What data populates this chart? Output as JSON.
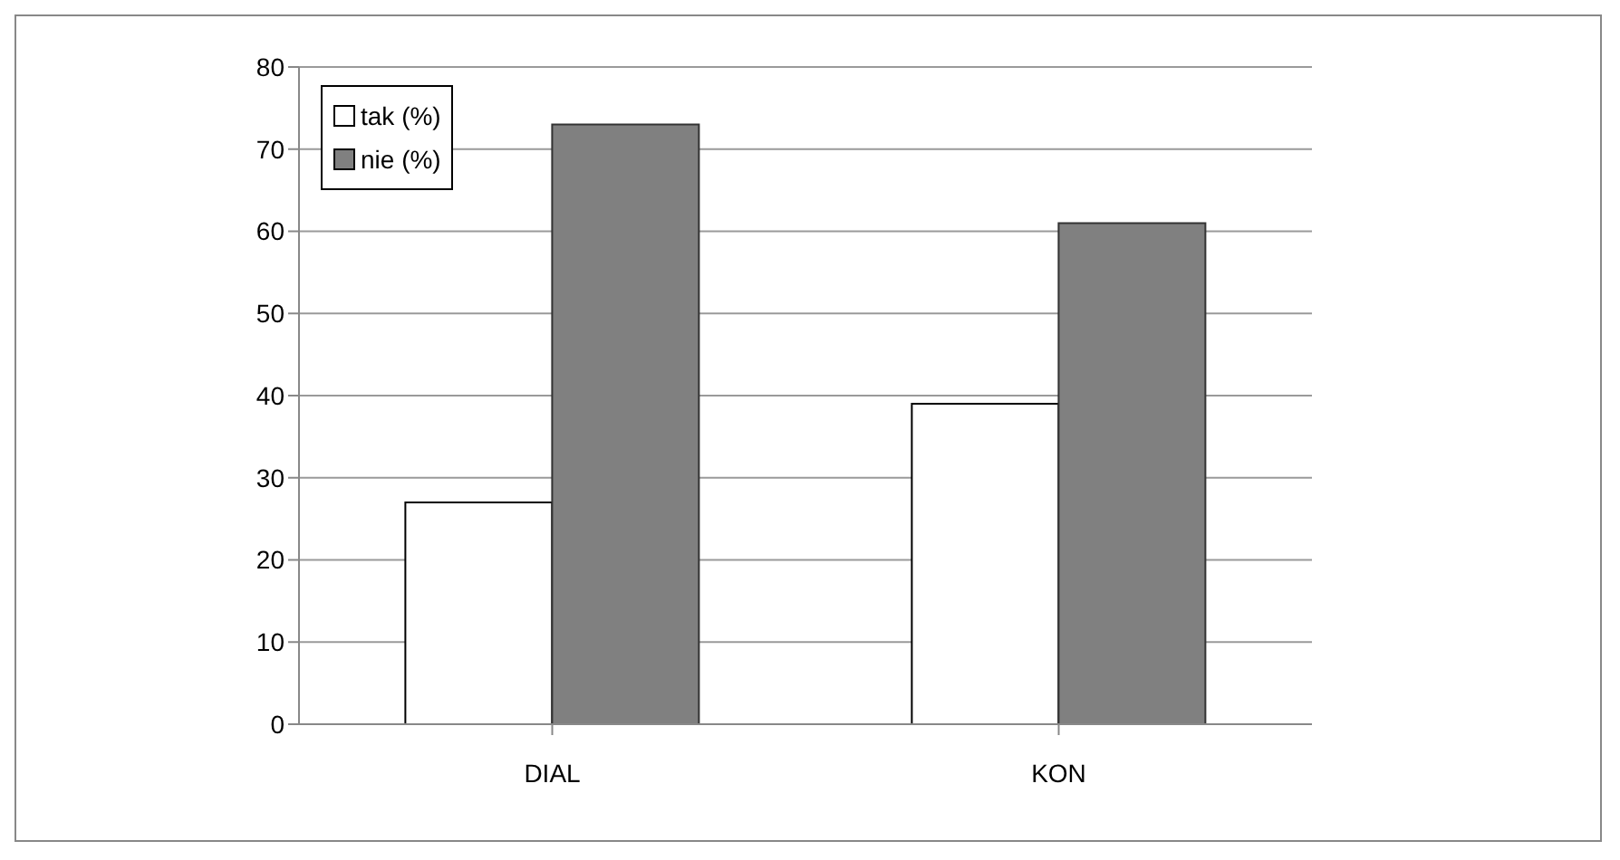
{
  "chart_data": {
    "type": "bar",
    "categories": [
      "DIAL",
      "KON"
    ],
    "series": [
      {
        "name": "tak (%)",
        "color": "#ffffff",
        "values": [
          27,
          39
        ]
      },
      {
        "name": "nie (%)",
        "color": "#808080",
        "values": [
          73,
          61
        ]
      }
    ],
    "ylim": [
      0,
      80
    ],
    "yticks": [
      0,
      10,
      20,
      30,
      40,
      50,
      60,
      70,
      80
    ],
    "grid": "y",
    "legend": "top left"
  }
}
